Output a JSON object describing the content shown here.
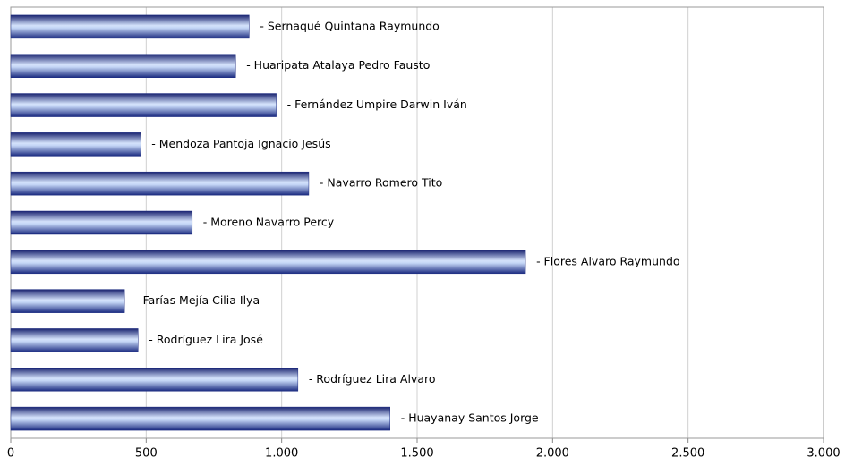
{
  "chart_data": {
    "type": "bar",
    "orientation": "horizontal",
    "categories": [
      "- Sernaqué Quintana Raymundo",
      "- Huaripata Atalaya Pedro Fausto",
      "- Fernández Umpire Darwin Iván",
      "- Mendoza Pantoja Ignacio Jesús",
      "- Navarro Romero Tito",
      "- Moreno Navarro Percy",
      "- Flores Alvaro Raymundo",
      "- Farías Mejía Cilia Ilya",
      "- Rodríguez Lira José",
      "- Rodríguez Lira Alvaro",
      "- Huayanay Santos Jorge"
    ],
    "values": [
      880,
      830,
      980,
      480,
      1100,
      670,
      1900,
      420,
      470,
      1060,
      1400
    ],
    "color": "#1a2a80",
    "xlim": [
      0,
      3000
    ],
    "xticks": [
      0,
      500,
      {
        "value": 1000,
        "label": "1.000"
      },
      {
        "value": 1500,
        "label": "1.500"
      },
      {
        "value": 2000,
        "label": "2.000"
      },
      {
        "value": 2500,
        "label": "2.500"
      },
      {
        "value": 3000,
        "label": "3.000"
      }
    ],
    "grid": true
  }
}
